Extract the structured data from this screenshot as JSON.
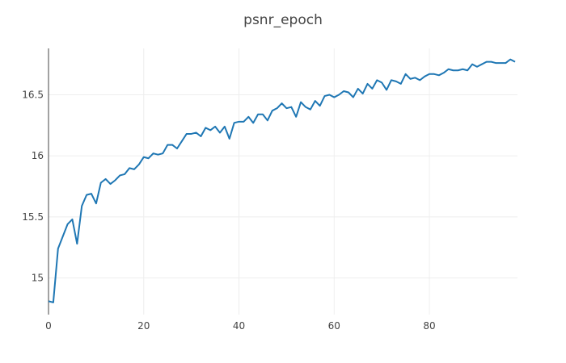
{
  "chart_data": {
    "type": "line",
    "title": "psnr_epoch",
    "xlabel": "",
    "ylabel": "",
    "xlim": [
      0,
      98.5
    ],
    "ylim": [
      14.7,
      16.88
    ],
    "x_ticks": [
      0,
      20,
      40,
      60,
      80
    ],
    "y_ticks": [
      15,
      15.5,
      16,
      16.5
    ],
    "y_tick_labels": [
      "15",
      "15.5",
      "16",
      "16.5"
    ],
    "x_tick_labels": [
      "0",
      "20",
      "40",
      "60",
      "80"
    ],
    "grid": true,
    "legend": "none",
    "line_color": "#1f77b4",
    "series": [
      {
        "x": [
          0,
          1,
          2,
          3,
          4,
          5,
          6,
          7,
          8,
          9,
          10,
          11,
          12,
          13,
          14,
          15,
          16,
          17,
          18,
          19,
          20,
          21,
          22,
          23,
          24,
          25,
          26,
          27,
          28,
          29,
          30,
          31,
          32,
          33,
          34,
          35,
          36,
          37,
          38,
          39,
          40,
          41,
          42,
          43,
          44,
          45,
          46,
          47,
          48,
          49,
          50,
          51,
          52,
          53,
          54,
          55,
          56,
          57,
          58,
          59,
          60,
          61,
          62,
          63,
          64,
          65,
          66,
          67,
          68,
          69,
          70,
          71,
          72,
          73,
          74,
          75,
          76,
          77,
          78,
          79,
          80,
          81,
          82,
          83,
          84,
          85,
          86,
          87,
          88,
          89,
          90,
          91,
          92,
          93,
          94,
          95,
          96,
          97,
          98
        ],
        "values": [
          14.81,
          14.8,
          15.24,
          15.34,
          15.44,
          15.48,
          15.28,
          15.59,
          15.68,
          15.69,
          15.61,
          15.78,
          15.81,
          15.77,
          15.8,
          15.84,
          15.85,
          15.9,
          15.89,
          15.93,
          15.99,
          15.98,
          16.02,
          16.01,
          16.02,
          16.09,
          16.09,
          16.06,
          16.12,
          16.18,
          16.18,
          16.19,
          16.16,
          16.23,
          16.21,
          16.24,
          16.19,
          16.24,
          16.14,
          16.27,
          16.28,
          16.28,
          16.32,
          16.27,
          16.34,
          16.34,
          16.29,
          16.37,
          16.39,
          16.43,
          16.39,
          16.4,
          16.32,
          16.44,
          16.4,
          16.38,
          16.45,
          16.41,
          16.49,
          16.5,
          16.48,
          16.5,
          16.53,
          16.52,
          16.48,
          16.55,
          16.51,
          16.59,
          16.55,
          16.62,
          16.6,
          16.54,
          16.62,
          16.61,
          16.59,
          16.67,
          16.63,
          16.64,
          16.62,
          16.65,
          16.67,
          16.67,
          16.66,
          16.68,
          16.71,
          16.7,
          16.7,
          16.71,
          16.7,
          16.75,
          16.73,
          16.75,
          16.77,
          16.77,
          16.76,
          16.76,
          16.76,
          16.79,
          16.77
        ]
      }
    ]
  }
}
